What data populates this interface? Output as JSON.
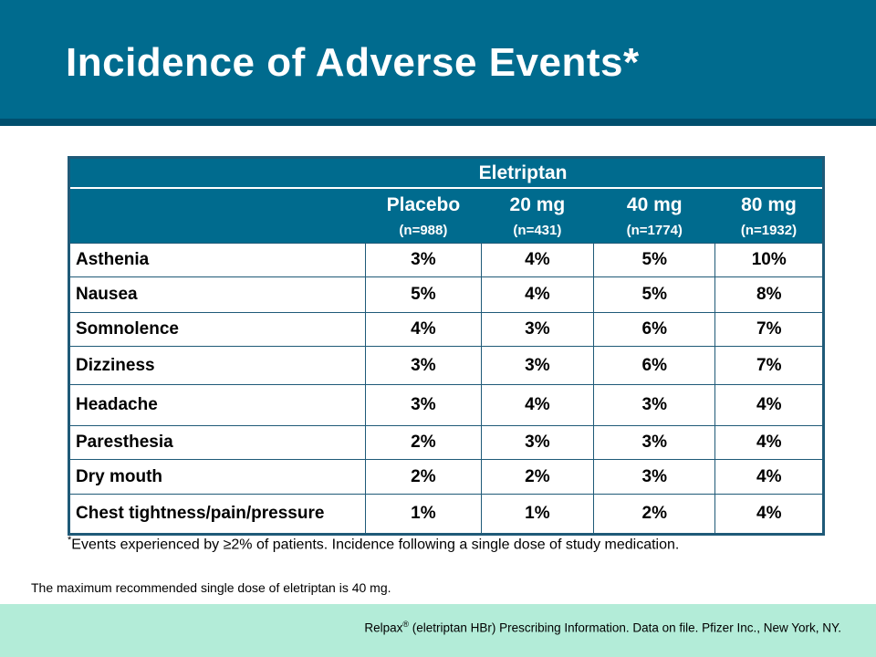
{
  "title": "Incidence of Adverse Events*",
  "table": {
    "group_header": "Eletriptan",
    "columns": [
      {
        "name": "Placebo",
        "n": "(n=988)"
      },
      {
        "name": "20 mg",
        "n": "(n=431)"
      },
      {
        "name": "40 mg",
        "n": "(n=1774)"
      },
      {
        "name": "80 mg",
        "n": "(n=1932)"
      }
    ],
    "rows": [
      {
        "label": "Asthenia",
        "values": [
          "3%",
          "4%",
          "5%",
          "10%"
        ]
      },
      {
        "label": "Nausea",
        "values": [
          "5%",
          "4%",
          "5%",
          "8%"
        ]
      },
      {
        "label": "Somnolence",
        "values": [
          "4%",
          "3%",
          "6%",
          "7%"
        ]
      },
      {
        "label": "Dizziness",
        "values": [
          "3%",
          "3%",
          "6%",
          "7%"
        ]
      },
      {
        "label": "Headache",
        "values": [
          "3%",
          "4%",
          "3%",
          "4%"
        ]
      },
      {
        "label": "Paresthesia",
        "values": [
          "2%",
          "3%",
          "3%",
          "4%"
        ]
      },
      {
        "label": "Dry mouth",
        "values": [
          "2%",
          "2%",
          "3%",
          "4%"
        ]
      },
      {
        "label": "Chest tightness/pain/pressure",
        "values": [
          "1%",
          "1%",
          "2%",
          "4%"
        ]
      }
    ]
  },
  "footnote": {
    "marker": "*",
    "text": "Events experienced by ≥2% of patients. Incidence following a single dose of study medication."
  },
  "note": "The maximum recommended single dose of eletriptan is 40 mg.",
  "reference": {
    "brand": "Relpax",
    "mark": "®",
    "text": " (eletriptan HBr) Prescribing Information. Data on file. Pfizer Inc., New York, NY."
  },
  "colors": {
    "title_bar": "#006b8e",
    "title_rule": "#004f6e",
    "table_border": "#1f5a78",
    "reference_bar": "#b3ecd8"
  }
}
